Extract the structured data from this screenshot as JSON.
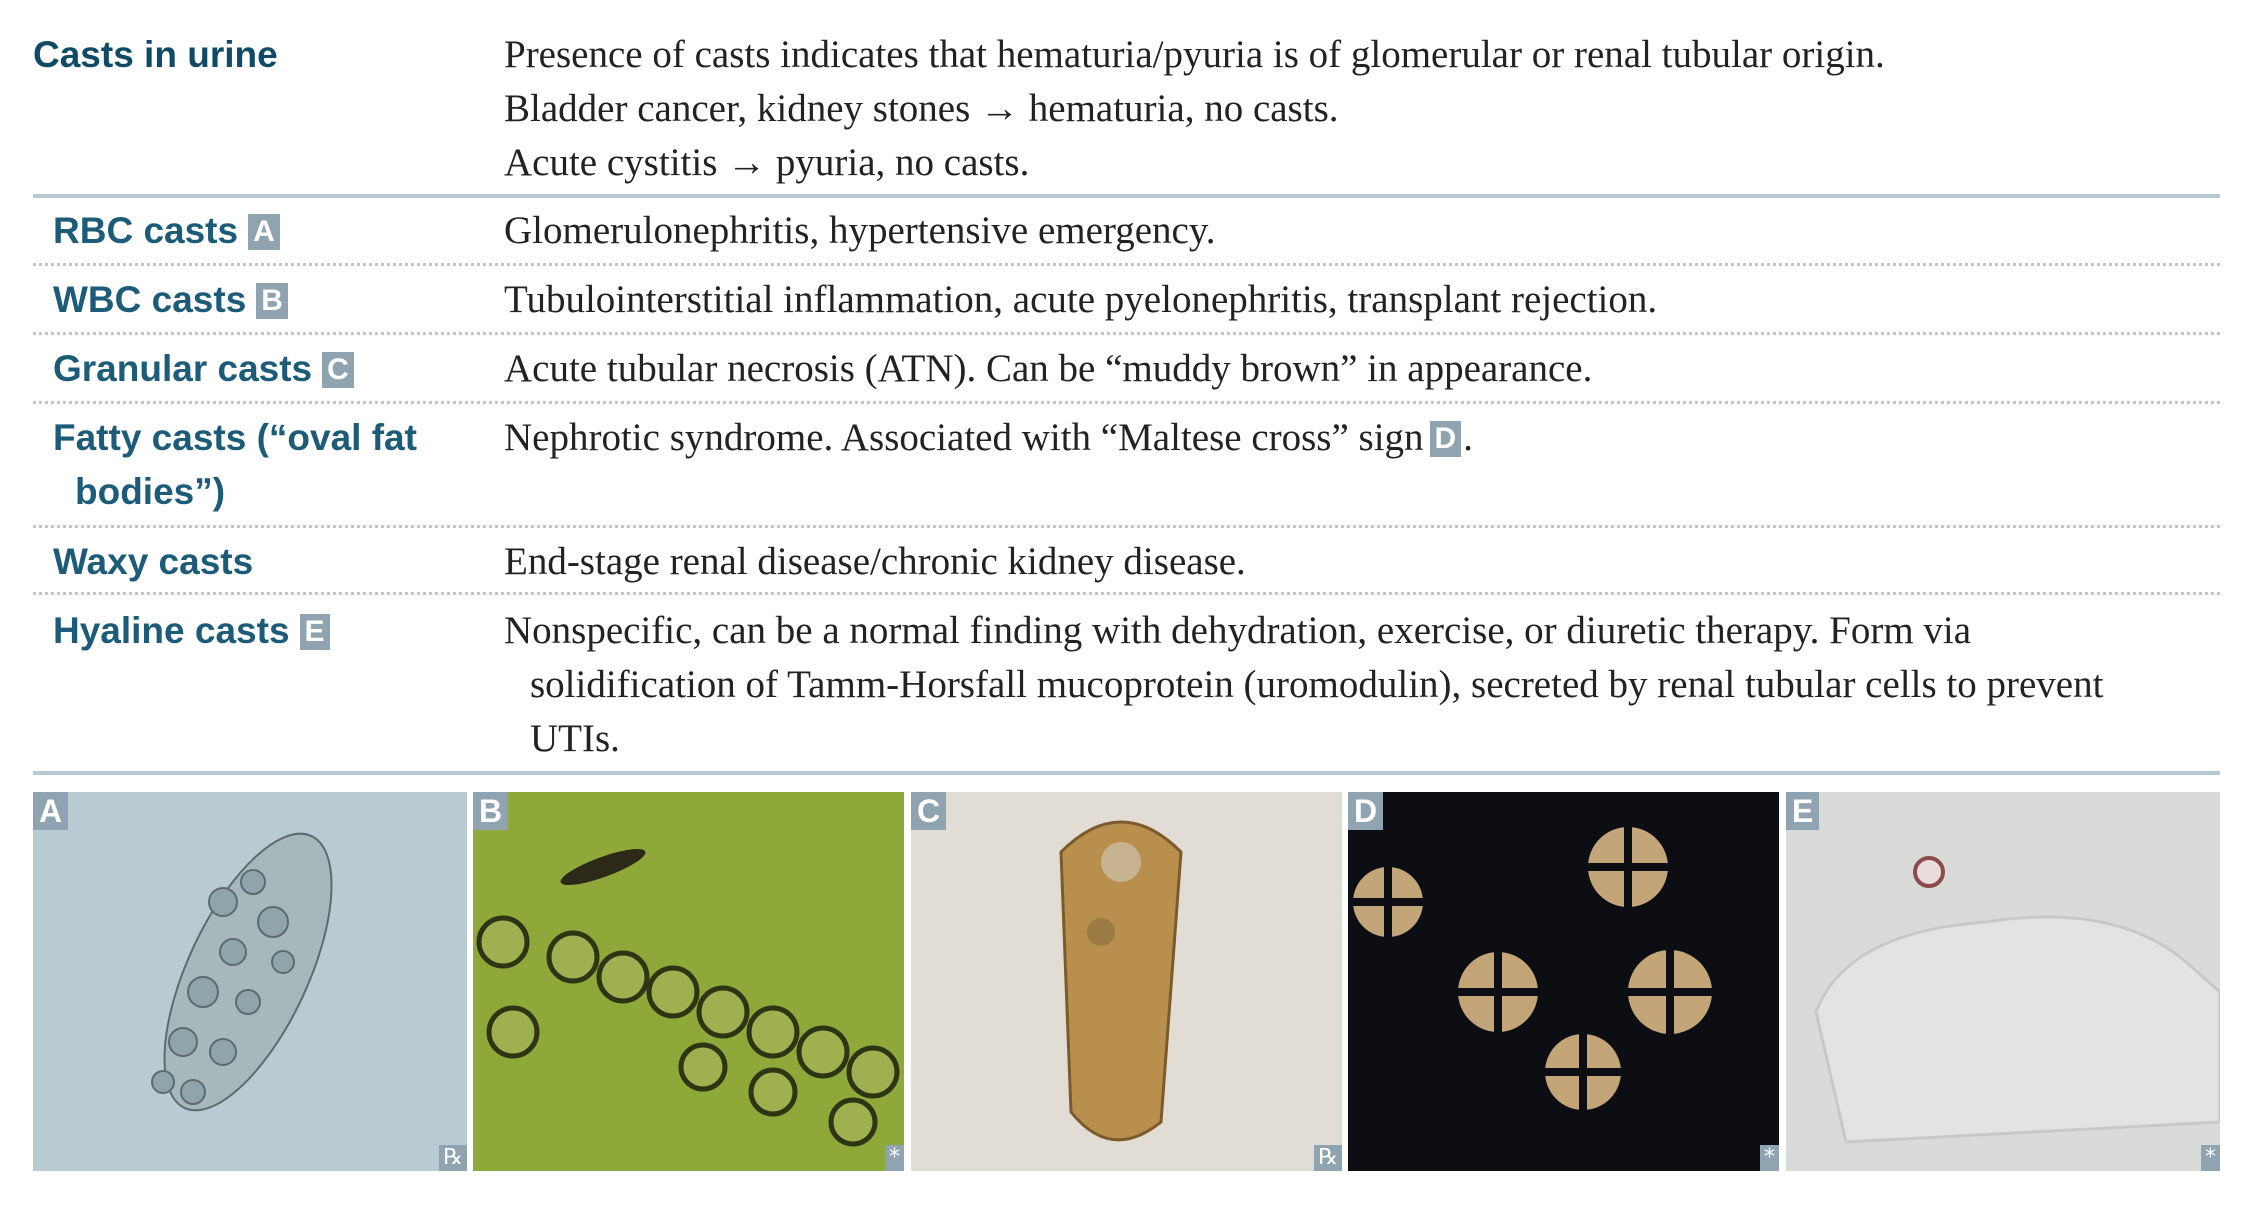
{
  "header": {
    "title": "Casts in urine",
    "lines": [
      "Presence of casts indicates that hematuria/pyuria is of glomerular or renal tubular origin.",
      "Bladder cancer, kidney stones → hematuria, no casts.",
      "Acute cystitis → pyuria, no casts."
    ]
  },
  "rows": [
    {
      "name": "RBC casts",
      "badge": "A",
      "text": "Glomerulonephritis, hypertensive emergency."
    },
    {
      "name": "WBC casts",
      "badge": "B",
      "text": "Tubulointerstitial inflammation, acute pyelonephritis, transplant rejection."
    },
    {
      "name": "Granular casts",
      "badge": "C",
      "text": "Acute tubular necrosis (ATN). Can be “muddy brown” in appearance."
    },
    {
      "name": "Fatty casts (“oval fat bodies”)",
      "text": "Nephrotic syndrome. Associated with “Maltese cross” sign",
      "text_badge": "D",
      "text_end": "."
    },
    {
      "name": "Waxy casts",
      "text": "End-stage renal disease/chronic kidney disease."
    },
    {
      "name": "Hyaline casts",
      "badge": "E",
      "text": "Nonspecific, can be a normal finding with dehydration, exercise, or diuretic therapy. Form via solidification of Tamm-Horsfall mucoprotein (uromodulin), secreted by renal tubular cells to prevent UTIs."
    }
  ],
  "images": [
    {
      "label": "A",
      "mark": "℞"
    },
    {
      "label": "B",
      "mark": "*"
    },
    {
      "label": "C",
      "mark": "℞"
    },
    {
      "label": "D",
      "mark": "*"
    },
    {
      "label": "E",
      "mark": "*"
    }
  ]
}
